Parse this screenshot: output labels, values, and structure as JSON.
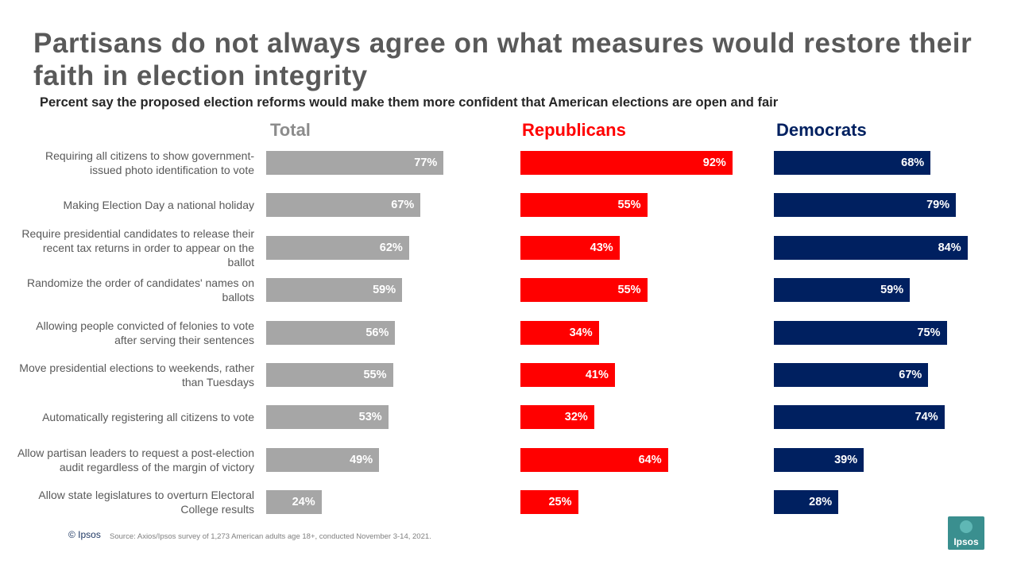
{
  "title": "Partisans do not always agree on what measures would restore their faith in election integrity",
  "subtitle": "Percent say the proposed election reforms would make them more confident that American elections are open and fair",
  "footer": {
    "copyright": "© Ipsos",
    "source": "Source: Axios/Ipsos survey of 1,273 American adults age 18+, conducted November 3-14, 2021.",
    "logo_text": "Ipsos"
  },
  "colors": {
    "total": "#a6a6a6",
    "republicans": "#ff0000",
    "democrats": "#002060",
    "total_header": "#8c8c8c"
  },
  "chart_data": {
    "type": "bar",
    "orientation": "horizontal",
    "unit": "%",
    "xlim": [
      0,
      100
    ],
    "categories": [
      "Requiring all citizens to show government-issued photo identification to vote",
      "Making Election Day a national holiday",
      "Require presidential candidates to release their recent tax returns in order to appear on the ballot",
      "Randomize the order of candidates' names on ballots",
      "Allowing people convicted of felonies to vote after serving their sentences",
      "Move presidential elections to weekends, rather than Tuesdays",
      "Automatically registering all citizens to vote",
      "Allow partisan leaders to request a post-election audit regardless of the margin of victory",
      "Allow state legislatures to overturn Electoral College results"
    ],
    "series": [
      {
        "name": "Total",
        "values": [
          77,
          67,
          62,
          59,
          56,
          55,
          53,
          49,
          24
        ]
      },
      {
        "name": "Republicans",
        "values": [
          92,
          55,
          43,
          55,
          34,
          41,
          32,
          64,
          25
        ]
      },
      {
        "name": "Democrats",
        "values": [
          68,
          79,
          84,
          59,
          75,
          67,
          74,
          39,
          28
        ]
      }
    ]
  }
}
